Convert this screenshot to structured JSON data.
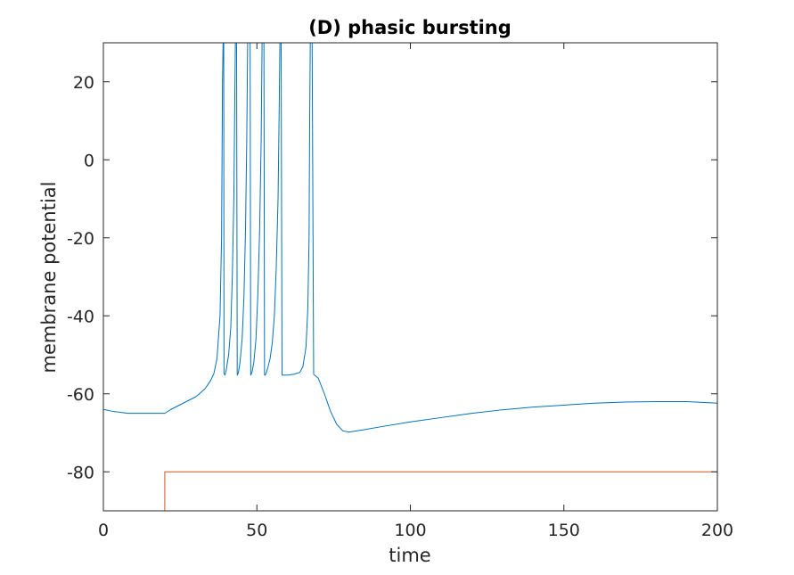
{
  "chart_data": {
    "type": "line",
    "title": "(D) phasic bursting",
    "xlabel": "time",
    "ylabel": "membrane potential",
    "xlim": [
      0,
      200
    ],
    "ylim": [
      -90,
      30
    ],
    "xticks": [
      0,
      50,
      100,
      150,
      200
    ],
    "xtick_labels": [
      "0",
      "50",
      "100",
      "150",
      "200"
    ],
    "yticks": [
      -80,
      -60,
      -40,
      -20,
      0,
      20
    ],
    "ytick_labels": [
      "-80",
      "-60",
      "-40",
      "-20",
      "0",
      "20"
    ],
    "grid": false,
    "box": true,
    "series": [
      {
        "color": "#0072bd",
        "x": [
          0,
          3,
          8,
          13,
          18,
          20,
          22,
          24,
          26,
          28,
          30,
          31,
          32,
          33,
          34,
          35,
          36,
          37,
          38,
          38.5,
          38.8,
          39,
          39.2,
          39.3,
          39.6,
          40,
          40.8,
          41.5,
          42,
          42.5,
          42.8,
          43,
          43.2,
          43.4,
          43.6,
          44,
          44.5,
          45.2,
          45.8,
          46.3,
          46.7,
          47,
          47.3,
          47.6,
          47.8,
          48,
          48.4,
          49,
          49.7,
          50.3,
          50.9,
          51.4,
          51.7,
          52,
          52.3,
          52.5,
          52.7,
          53,
          53.5,
          54.3,
          55,
          55.7,
          56.3,
          56.9,
          57.3,
          57.5,
          57.7,
          57.9,
          58.2,
          58.5,
          60,
          62,
          64,
          65,
          66,
          66.6,
          67,
          67.2,
          67.4,
          67.6,
          67.8,
          68,
          68.5,
          70,
          72,
          74,
          76,
          78,
          80,
          85,
          90,
          100,
          110,
          120,
          130,
          140,
          150,
          160,
          170,
          180,
          190,
          200
        ],
        "y": [
          -64,
          -64.5,
          -65,
          -65,
          -65,
          -65,
          -64,
          -63.2,
          -62.4,
          -61.6,
          -60.8,
          -60.2,
          -59.5,
          -58.8,
          -57.7,
          -56.5,
          -54.8,
          -51,
          -40,
          -20,
          20,
          30,
          30,
          -54.8,
          -55.2,
          -54,
          -50,
          -43,
          -30,
          -10,
          15,
          30,
          30,
          30,
          -55.2,
          -54.5,
          -52,
          -46,
          -35,
          -18,
          5,
          30,
          30,
          30,
          30,
          -55.2,
          -54.5,
          -52,
          -46,
          -35,
          -18,
          5,
          30,
          30,
          30,
          -55.2,
          -55.2,
          -54.8,
          -53.5,
          -51,
          -47,
          -40,
          -28,
          -10,
          15,
          30,
          30,
          30,
          -55.2,
          -55.2,
          -55.2,
          -55,
          -54.5,
          -53,
          -48,
          -38,
          -20,
          10,
          30,
          30,
          30,
          30,
          -55,
          -56,
          -60,
          -64.5,
          -67.8,
          -69.5,
          -69.8,
          -69.2,
          -68.5,
          -67.2,
          -66.1,
          -65,
          -64.1,
          -63.4,
          -62.9,
          -62.4,
          -62.1,
          -62,
          -62,
          -62.4
        ]
      },
      {
        "color": "#d95319",
        "x": [
          0,
          20,
          20,
          200
        ],
        "y": [
          -90,
          -90,
          -80,
          -80
        ]
      }
    ]
  }
}
